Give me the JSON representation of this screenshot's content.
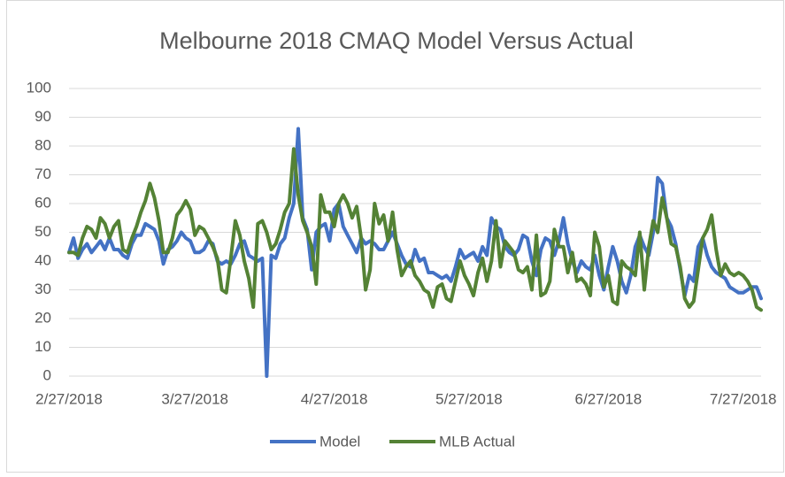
{
  "chart_data": {
    "type": "line",
    "title": "Melbourne 2018 CMAQ Model Versus Actual",
    "x": [
      "2/27/2018",
      "2/28/2018",
      "3/1/2018",
      "3/2/2018",
      "3/3/2018",
      "3/4/2018",
      "3/5/2018",
      "3/6/2018",
      "3/7/2018",
      "3/8/2018",
      "3/9/2018",
      "3/10/2018",
      "3/11/2018",
      "3/12/2018",
      "3/13/2018",
      "3/14/2018",
      "3/15/2018",
      "3/16/2018",
      "3/17/2018",
      "3/18/2018",
      "3/19/2018",
      "3/20/2018",
      "3/21/2018",
      "3/22/2018",
      "3/23/2018",
      "3/24/2018",
      "3/25/2018",
      "3/26/2018",
      "3/27/2018",
      "3/28/2018",
      "3/29/2018",
      "3/30/2018",
      "3/31/2018",
      "4/1/2018",
      "4/2/2018",
      "4/3/2018",
      "4/4/2018",
      "4/5/2018",
      "4/6/2018",
      "4/7/2018",
      "4/8/2018",
      "4/9/2018",
      "4/10/2018",
      "4/11/2018",
      "4/12/2018",
      "4/13/2018",
      "4/14/2018",
      "4/15/2018",
      "4/16/2018",
      "4/17/2018",
      "4/18/2018",
      "4/19/2018",
      "4/20/2018",
      "4/21/2018",
      "4/22/2018",
      "4/23/2018",
      "4/24/2018",
      "4/25/2018",
      "4/26/2018",
      "4/27/2018",
      "4/28/2018",
      "4/29/2018",
      "4/30/2018",
      "5/1/2018",
      "5/2/2018",
      "5/3/2018",
      "5/4/2018",
      "5/5/2018",
      "5/6/2018",
      "5/7/2018",
      "5/8/2018",
      "5/9/2018",
      "5/10/2018",
      "5/11/2018",
      "5/12/2018",
      "5/13/2018",
      "5/14/2018",
      "5/15/2018",
      "5/16/2018",
      "5/17/2018",
      "5/18/2018",
      "5/19/2018",
      "5/20/2018",
      "5/21/2018",
      "5/22/2018",
      "5/23/2018",
      "5/24/2018",
      "5/25/2018",
      "5/26/2018",
      "5/27/2018",
      "5/28/2018",
      "5/29/2018",
      "5/30/2018",
      "5/31/2018",
      "6/1/2018",
      "6/2/2018",
      "6/3/2018",
      "6/4/2018",
      "6/5/2018",
      "6/6/2018",
      "6/7/2018",
      "6/8/2018",
      "6/9/2018",
      "6/10/2018",
      "6/11/2018",
      "6/12/2018",
      "6/13/2018",
      "6/14/2018",
      "6/15/2018",
      "6/16/2018",
      "6/17/2018",
      "6/18/2018",
      "6/19/2018",
      "6/20/2018",
      "6/21/2018",
      "6/22/2018",
      "6/23/2018",
      "6/24/2018",
      "6/25/2018",
      "6/26/2018",
      "6/27/2018",
      "6/28/2018",
      "6/29/2018",
      "6/30/2018",
      "7/1/2018",
      "7/2/2018",
      "7/3/2018",
      "7/4/2018",
      "7/5/2018",
      "7/6/2018",
      "7/7/2018",
      "7/8/2018",
      "7/9/2018",
      "7/10/2018",
      "7/11/2018",
      "7/12/2018",
      "7/13/2018",
      "7/14/2018",
      "7/15/2018",
      "7/16/2018",
      "7/17/2018",
      "7/18/2018",
      "7/19/2018",
      "7/20/2018",
      "7/21/2018",
      "7/22/2018",
      "7/23/2018",
      "7/24/2018",
      "7/25/2018",
      "7/26/2018",
      "7/27/2018",
      "7/28/2018",
      "7/29/2018",
      "7/30/2018",
      "7/31/2018"
    ],
    "series": [
      {
        "name": "Model",
        "color": "#4472c4",
        "values": [
          43,
          48,
          41,
          44,
          46,
          43,
          45,
          47,
          44,
          48,
          44,
          44,
          42,
          41,
          46,
          49,
          49,
          53,
          52,
          51,
          47,
          39,
          44,
          45,
          47,
          50,
          48,
          47,
          43,
          43,
          44,
          47,
          46,
          40,
          39,
          40,
          39,
          42,
          46,
          47,
          42,
          41,
          40,
          41,
          0,
          42,
          41,
          46,
          48,
          55,
          60,
          86,
          55,
          51,
          37,
          50,
          52,
          53,
          47,
          58,
          60,
          52,
          49,
          46,
          43,
          48,
          46,
          47,
          46,
          44,
          44,
          47,
          50,
          46,
          42,
          39,
          38,
          44,
          40,
          41,
          36,
          36,
          35,
          34,
          35,
          33,
          38,
          44,
          41,
          42,
          43,
          40,
          45,
          42,
          55,
          52,
          51,
          45,
          43,
          42,
          44,
          49,
          48,
          40,
          35,
          44,
          48,
          47,
          42,
          47,
          55,
          46,
          40,
          36,
          40,
          38,
          37,
          42,
          35,
          30,
          38,
          45,
          40,
          33,
          29,
          35,
          45,
          49,
          45,
          42,
          50,
          69,
          67,
          55,
          52,
          46,
          37,
          28,
          35,
          33,
          45,
          48,
          42,
          38,
          36,
          35,
          34,
          31,
          30,
          29,
          29,
          30,
          31,
          31,
          27
        ]
      },
      {
        "name": "MLB Actual",
        "color": "#548235",
        "values": [
          43,
          43,
          42,
          48,
          52,
          51,
          48,
          55,
          53,
          48,
          52,
          54,
          44,
          43,
          48,
          52,
          57,
          61,
          67,
          62,
          54,
          43,
          43,
          48,
          56,
          58,
          61,
          58,
          49,
          52,
          51,
          48,
          45,
          41,
          30,
          29,
          41,
          54,
          49,
          40,
          34,
          24,
          53,
          54,
          50,
          44,
          46,
          51,
          57,
          60,
          79,
          63,
          54,
          50,
          45,
          32,
          63,
          57,
          57,
          52,
          60,
          63,
          60,
          55,
          59,
          48,
          30,
          37,
          60,
          53,
          56,
          47,
          57,
          44,
          35,
          38,
          40,
          35,
          33,
          30,
          29,
          24,
          31,
          32,
          27,
          26,
          33,
          40,
          35,
          32,
          28,
          36,
          41,
          33,
          40,
          54,
          38,
          47,
          45,
          43,
          37,
          36,
          38,
          30,
          49,
          28,
          29,
          33,
          51,
          45,
          45,
          36,
          43,
          33,
          34,
          32,
          28,
          50,
          45,
          31,
          35,
          26,
          25,
          40,
          38,
          37,
          35,
          50,
          30,
          45,
          54,
          50,
          62,
          55,
          46,
          45,
          38,
          27,
          24,
          26,
          37,
          48,
          51,
          56,
          44,
          35,
          39,
          36,
          35,
          36,
          35,
          33,
          30,
          24,
          23
        ]
      }
    ],
    "xlim": [
      "2/27/2018",
      "7/31/2018"
    ],
    "xticks": [
      "2/27/2018",
      "3/27/2018",
      "4/27/2018",
      "5/27/2018",
      "6/27/2018",
      "7/27/2018"
    ],
    "ylim": [
      0,
      100
    ],
    "yticks": [
      0,
      10,
      20,
      30,
      40,
      50,
      60,
      70,
      80,
      90,
      100
    ],
    "grid": true,
    "legend": "bottom"
  }
}
